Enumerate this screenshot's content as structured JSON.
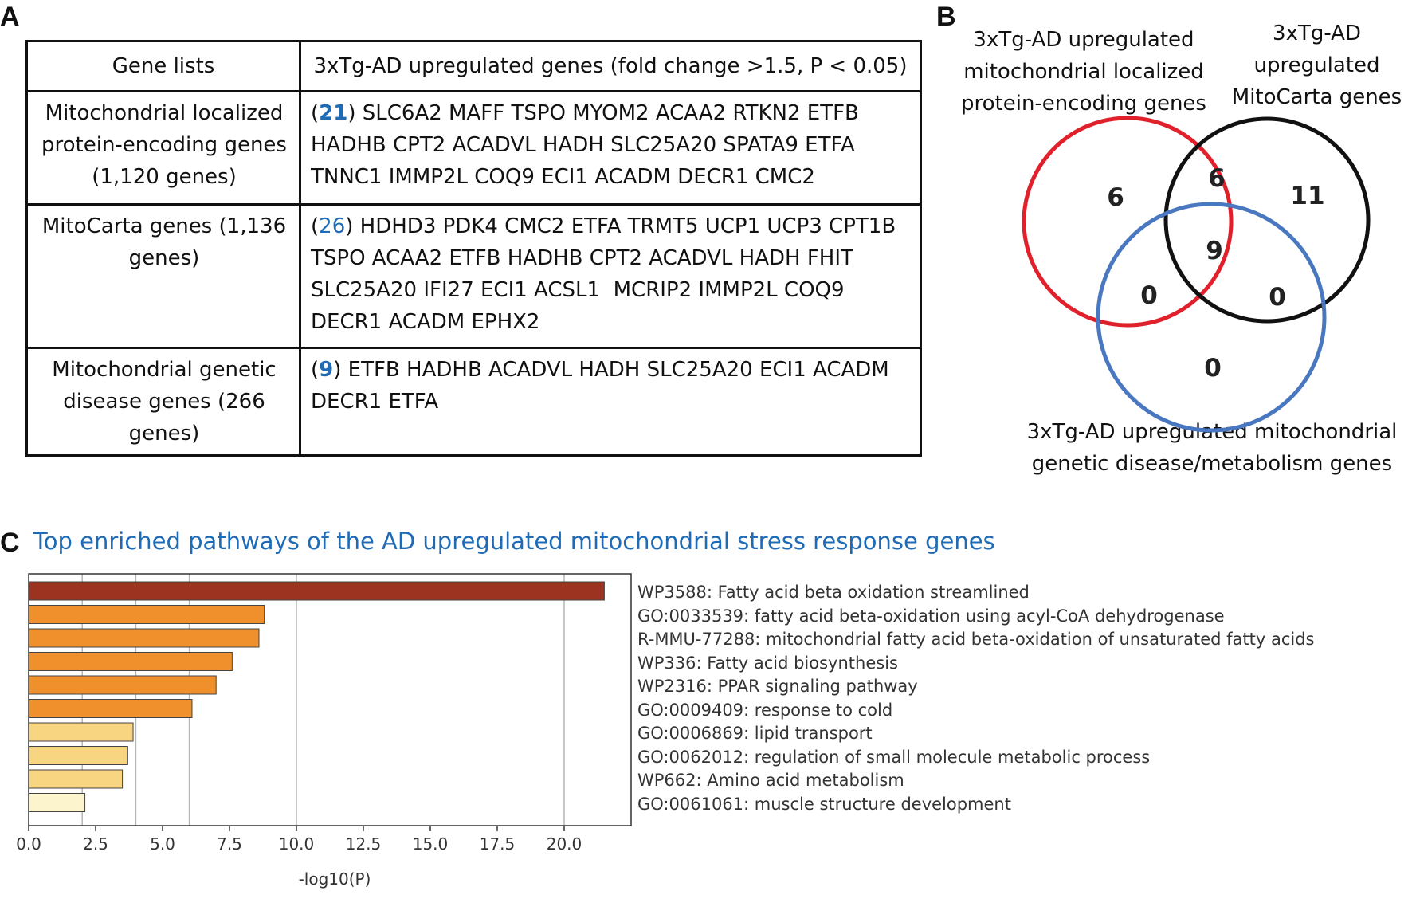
{
  "panel_labels": {
    "a": "A",
    "b": "B",
    "c": "C"
  },
  "table": {
    "header": {
      "col1": "Gene lists",
      "col2": "3xTg-AD upregulated genes (fold change >1.5, P < 0.05)"
    },
    "rows": [
      {
        "label": "Mitochondrial localized protein-encoding genes (1,120 genes)",
        "count": "21",
        "genes": "SLC6A2 MAFF TSPO MYOM2 ACAA2 RTKN2 ETFB HADHB CPT2 ACADVL HADH SLC25A20 SPATA9 ETFA TNNC1 IMMP2L COQ9 ECI1 ACADM DECR1 CMC2"
      },
      {
        "label": "MitoCarta genes (1,136 genes)",
        "count": "26",
        "genes": "HDHD3 PDK4 CMC2 ETFA TRMT5 UCP1 UCP3 CPT1B TSPO ACAA2 ETFB HADHB CPT2 ACADVL HADH FHIT SLC25A20 IFI27 ECI1 ACSL1  MCRIP2 IMMP2L COQ9 DECR1 ACADM EPHX2"
      },
      {
        "label": "Mitochondrial genetic disease genes (266 genes)",
        "count": "9",
        "genes": "ETFB HADHB ACADVL HADH SLC25A20 ECI1 ACADM DECR1 ETFA"
      }
    ]
  },
  "venn": {
    "labels": {
      "red": "3xTg-AD upregulated mitochondrial localized protein-encoding genes",
      "black": "3xTg-AD upregulated MitoCarta genes",
      "blue": "3xTg-AD upregulated mitochondrial genetic disease/metabolism genes"
    },
    "counts": {
      "red_only": "6",
      "red_black": "6",
      "black_only": "11",
      "all_three": "9",
      "red_blue": "0",
      "black_blue": "0",
      "blue_only": "0"
    },
    "colors": {
      "red": "#e0202b",
      "black": "#111111",
      "blue": "#4a78c0"
    }
  },
  "chart_data": {
    "type": "bar",
    "orientation": "horizontal",
    "title": "Top enriched pathways of the AD upregulated mitochondrial stress response genes",
    "xlabel": "-log10(P)",
    "xlim": [
      0,
      22.5
    ],
    "xticks": [
      "0.0",
      "2.5",
      "5.0",
      "7.5",
      "10.0",
      "12.5",
      "15.0",
      "17.5",
      "20.0"
    ],
    "gridlines": [
      2,
      4,
      6,
      10,
      20
    ],
    "categories": [
      "WP3588: Fatty acid beta oxidation streamlined",
      "GO:0033539: fatty acid beta-oxidation using acyl-CoA dehydrogenase",
      "R-MMU-77288: mitochondrial fatty acid beta-oxidation of unsaturated fatty acids",
      "WP336: Fatty acid biosynthesis",
      "WP2316: PPAR signaling pathway",
      "GO:0009409: response to cold",
      "GO:0006869: lipid transport",
      "GO:0062012: regulation of small molecule metabolic process",
      "WP662: Amino acid metabolism",
      "GO:0061061: muscle structure development"
    ],
    "values": [
      21.5,
      8.8,
      8.6,
      7.6,
      7.0,
      6.1,
      3.9,
      3.7,
      3.5,
      2.1
    ],
    "colors": [
      "#9c3320",
      "#f0902c",
      "#f0902c",
      "#f0902c",
      "#f0902c",
      "#f0902c",
      "#f8d580",
      "#f8d580",
      "#f8d580",
      "#fcf4cc"
    ]
  }
}
